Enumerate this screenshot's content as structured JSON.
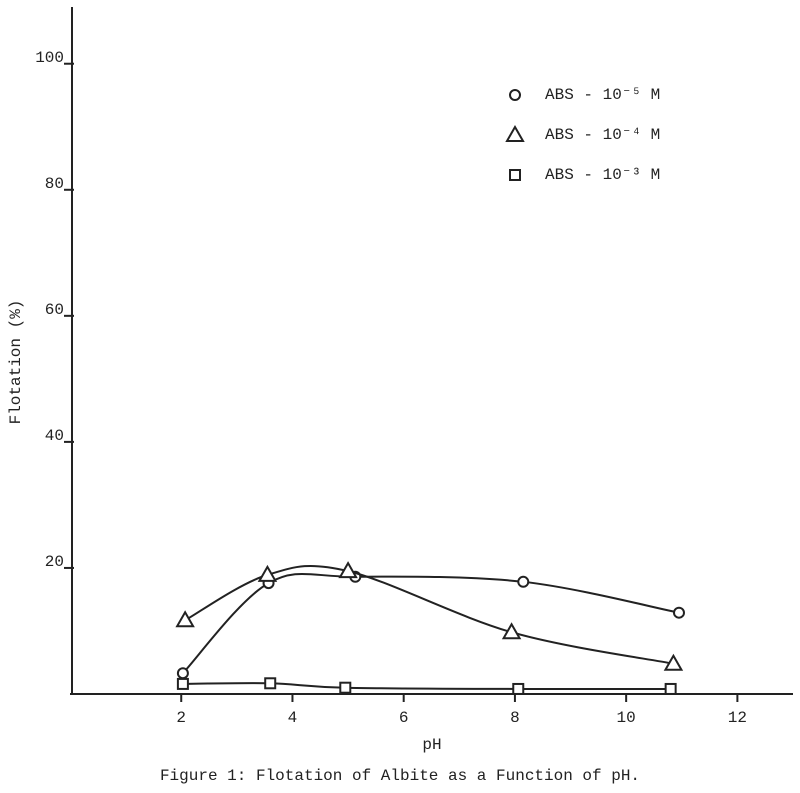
{
  "chart_data": {
    "type": "line",
    "caption": "Figure 1:  Flotation of Albite as a Function of pH.",
    "x_label": "pH",
    "y_label": "Flotation   (%)",
    "xlim": [
      0,
      13
    ],
    "ylim": [
      0,
      109
    ],
    "xticks": [
      2,
      4,
      6,
      8,
      10,
      12
    ],
    "yticks": [
      20,
      40,
      60,
      80,
      100
    ],
    "series": [
      {
        "name": "ABS - 10⁻⁵ M",
        "marker": "circle",
        "color": "#222222",
        "x": [
          2.03,
          3.57,
          5.13,
          8.15,
          10.95
        ],
        "values": [
          3.3,
          17.6,
          18.6,
          17.8,
          12.9
        ]
      },
      {
        "name": "ABS - 10⁻⁴ M",
        "marker": "triangle",
        "color": "#222222",
        "x": [
          2.07,
          3.55,
          5.0,
          7.94,
          10.85
        ],
        "values": [
          11.7,
          18.9,
          19.5,
          9.8,
          4.8
        ]
      },
      {
        "name": "ABS - 10⁻³ M",
        "marker": "square",
        "color": "#222222",
        "x": [
          2.03,
          3.6,
          4.95,
          8.06,
          10.8
        ],
        "values": [
          1.6,
          1.7,
          1.0,
          0.8,
          0.8
        ]
      }
    ]
  }
}
